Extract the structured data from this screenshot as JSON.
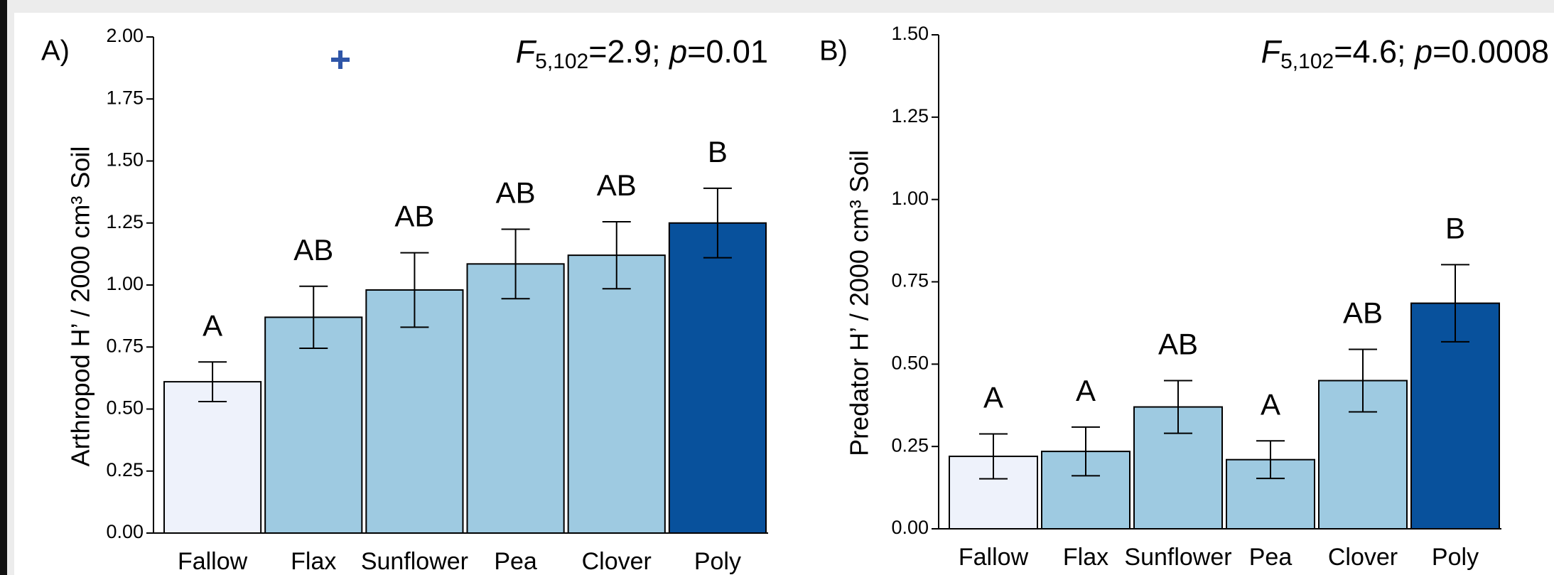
{
  "chart_data": [
    {
      "type": "bar",
      "panel_label": "A)",
      "y_label": "Arthropod H’ / 2000 cm³ Soil",
      "stat": {
        "f": "F",
        "df": "5,102",
        "fval": "=2.9; ",
        "p": "p",
        "pval": "=0.01"
      },
      "categories": [
        "Fallow",
        "Flax",
        "Sunflower",
        "Pea",
        "Clover",
        "Poly"
      ],
      "values": [
        0.61,
        0.87,
        0.98,
        1.085,
        1.12,
        1.25
      ],
      "errors": [
        0.08,
        0.125,
        0.15,
        0.14,
        0.135,
        0.14
      ],
      "letters": [
        "A",
        "AB",
        "AB",
        "AB",
        "AB",
        "B"
      ],
      "colors": [
        "#eef2fb",
        "#9ecae1",
        "#9ecae1",
        "#9ecae1",
        "#9ecae1",
        "#08519c"
      ],
      "ylim": [
        0,
        2
      ],
      "yticks": [
        {
          "value": 0,
          "label": "0.00"
        },
        0.25,
        {
          "value": 0.5,
          "label": "0.50"
        },
        0.75,
        {
          "value": 1,
          "label": "1.00"
        },
        1.25,
        {
          "value": 1.5,
          "label": "1.50"
        },
        1.75,
        {
          "value": 2,
          "label": "2.00"
        }
      ]
    },
    {
      "type": "bar",
      "panel_label": "B)",
      "y_label": "Predator H’ / 2000 cm³ Soil",
      "stat": {
        "f": "F",
        "df": "5,102",
        "fval": "=4.6; ",
        "p": "p",
        "pval": "=0.0008"
      },
      "categories": [
        "Fallow",
        "Flax",
        "Sunflower",
        "Pea",
        "Clover",
        "Poly"
      ],
      "values": [
        0.22,
        0.235,
        0.37,
        0.21,
        0.45,
        0.685
      ],
      "errors": [
        0.068,
        0.074,
        0.08,
        0.057,
        0.095,
        0.117
      ],
      "letters": [
        "A",
        "A",
        "AB",
        "A",
        "AB",
        "B"
      ],
      "colors": [
        "#eef2fb",
        "#9ecae1",
        "#9ecae1",
        "#9ecae1",
        "#9ecae1",
        "#08519c"
      ],
      "ylim": [
        0,
        1.5
      ],
      "yticks": [
        {
          "value": 0,
          "label": "0.00"
        },
        0.25,
        {
          "value": 0.5,
          "label": "0.50"
        },
        0.75,
        {
          "value": 1,
          "label": "1.00"
        },
        1.25,
        {
          "value": 1.5,
          "label": "1.50"
        }
      ]
    }
  ]
}
